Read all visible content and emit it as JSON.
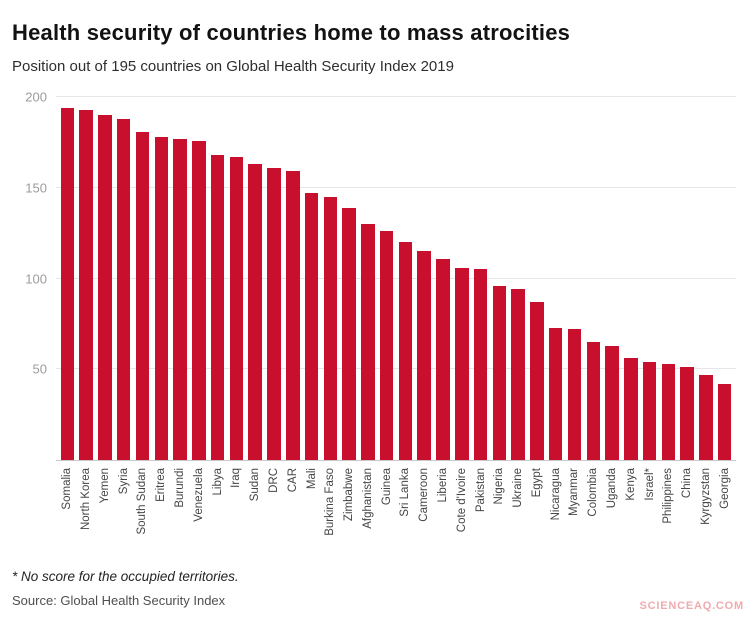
{
  "header": {
    "title": "Health security of countries home to mass atrocities",
    "subtitle": "Position out of 195 countries on Global Health Security Index 2019"
  },
  "chart_data": {
    "type": "bar",
    "title": "Health security of countries home to mass atrocities",
    "xlabel": "",
    "ylabel": "",
    "ylim": [
      0,
      200
    ],
    "yticks": [
      50,
      100,
      150,
      200
    ],
    "grid": true,
    "legend": "none",
    "bar_color": "#c8102e",
    "categories": [
      "Somalia",
      "North Korea",
      "Yemen",
      "Syria",
      "South Sudan",
      "Eritrea",
      "Burundi",
      "Venezuela",
      "Libya",
      "Iraq",
      "Sudan",
      "DRC",
      "CAR",
      "Mali",
      "Burkina Faso",
      "Zimbabwe",
      "Afghanistan",
      "Guinea",
      "Sri Lanka",
      "Cameroon",
      "Liberia",
      "Cote d'Ivoire",
      "Pakistan",
      "Nigeria",
      "Ukraine",
      "Egypt",
      "Nicaragua",
      "Myanmar",
      "Colombia",
      "Uganda",
      "Kenya",
      "Israel*",
      "Philippines",
      "China",
      "Kyrgyzstan",
      "Georgia"
    ],
    "values": [
      194,
      193,
      190,
      188,
      181,
      178,
      177,
      176,
      168,
      167,
      163,
      161,
      159,
      147,
      145,
      139,
      130,
      126,
      120,
      115,
      111,
      106,
      105,
      96,
      94,
      87,
      73,
      72,
      65,
      63,
      56,
      54,
      53,
      51,
      47,
      42
    ]
  },
  "footer": {
    "footnote": "* No score for the occupied territories.",
    "source": "Source: Global Health Security Index",
    "watermark": "SCIENCEAQ.COM"
  }
}
